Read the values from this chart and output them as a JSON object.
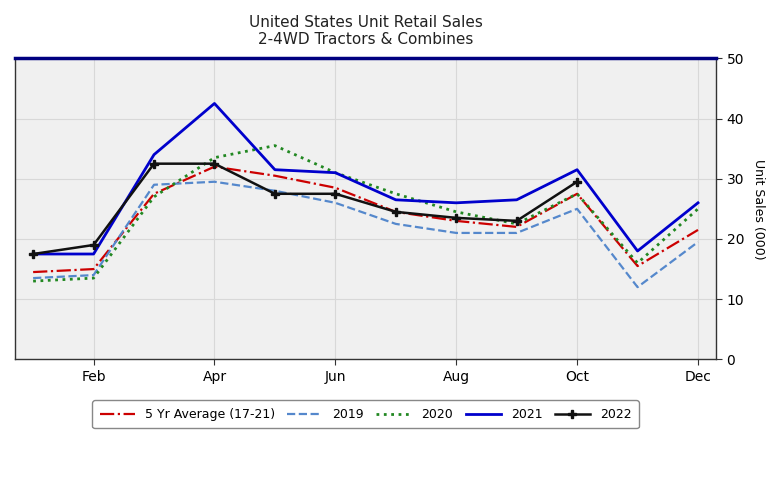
{
  "title_line1": "United States Unit Retail Sales",
  "title_line2": "2-4WD Tractors & Combines",
  "ylabel": "Unit Sales (000)",
  "ylim": [
    0,
    50
  ],
  "yticks": [
    0,
    10,
    20,
    30,
    40,
    50
  ],
  "x_tick_labels": [
    "Feb",
    "Apr",
    "Jun",
    "Aug",
    "Oct",
    "Dec"
  ],
  "x_tick_positions": [
    1,
    3,
    5,
    7,
    9,
    11
  ],
  "series": {
    "5yr_avg": {
      "label": "5 Yr Average (17-21)",
      "color": "#cc0000",
      "linestyle": "-.",
      "linewidth": 1.6,
      "marker": null,
      "data": [
        14.5,
        15.0,
        27.5,
        32.0,
        30.5,
        28.5,
        24.5,
        23.0,
        22.0,
        27.5,
        15.5,
        21.5
      ]
    },
    "y2019": {
      "label": "2019",
      "color": "#5588cc",
      "linestyle": "--",
      "linewidth": 1.6,
      "marker": null,
      "data": [
        13.5,
        14.0,
        29.0,
        29.5,
        28.0,
        26.0,
        22.5,
        21.0,
        21.0,
        25.0,
        12.0,
        19.5
      ]
    },
    "y2020": {
      "label": "2020",
      "color": "#228822",
      "linestyle": ":",
      "linewidth": 2.0,
      "marker": null,
      "data": [
        13.0,
        13.5,
        27.0,
        33.5,
        35.5,
        31.0,
        27.5,
        24.5,
        22.5,
        27.5,
        16.0,
        25.0
      ]
    },
    "y2021": {
      "label": "2021",
      "color": "#0000cc",
      "linestyle": "-",
      "linewidth": 2.0,
      "marker": null,
      "data": [
        17.5,
        17.5,
        34.0,
        42.5,
        31.5,
        31.0,
        26.5,
        26.0,
        26.5,
        31.5,
        18.0,
        26.0
      ]
    },
    "y2022": {
      "label": "2022",
      "color": "#111111",
      "linestyle": "-",
      "linewidth": 1.8,
      "marker": "P",
      "markersize": 6,
      "data": [
        17.5,
        19.0,
        32.5,
        32.5,
        27.5,
        27.5,
        24.5,
        23.5,
        23.0,
        29.5,
        null,
        null
      ]
    }
  },
  "fig_bg": "#ffffff",
  "plot_bg": "#f0f0f0",
  "grid_color": "#d8d8d8",
  "top_spine_color": "#000080",
  "legend_border_color": "#888888"
}
